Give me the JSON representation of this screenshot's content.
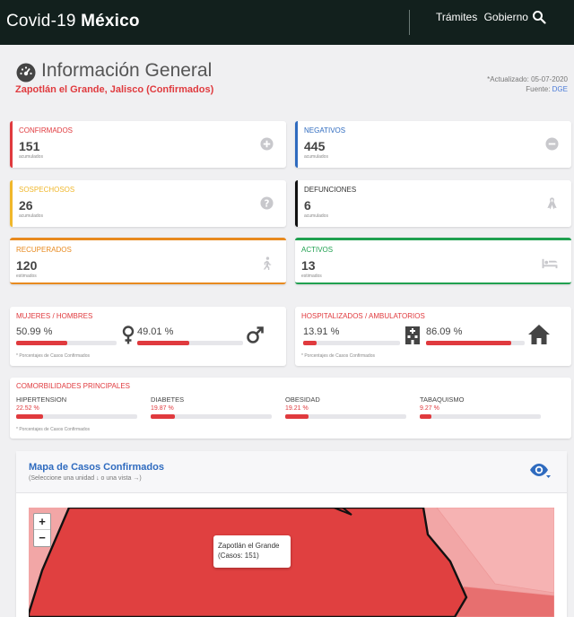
{
  "header": {
    "brand_prefix": "Covid-19",
    "brand_bold": "México",
    "nav_tramites": "Trámites",
    "nav_gobierno": "Gobierno"
  },
  "page": {
    "title": "Información General",
    "subtitle": "Zapotlán el Grande, Jalisco (Confirmados)",
    "updated": "*Actualizado: 05-07-2020",
    "source_prefix": "Fuente:",
    "source": "DGE"
  },
  "stats": {
    "confirmados": {
      "label": "CONFIRMADOS",
      "value": "151",
      "sub": "acumulados"
    },
    "negativos": {
      "label": "NEGATIVOS",
      "value": "445",
      "sub": "acumulados"
    },
    "sospechosos": {
      "label": "SOSPECHOSOS",
      "value": "26",
      "sub": "acumulados"
    },
    "defunciones": {
      "label": "DEFUNCIONES",
      "value": "6",
      "sub": "acumulados"
    },
    "recuperados": {
      "label": "RECUPERADOS",
      "value": "120",
      "sub": "estimados"
    },
    "activos": {
      "label": "ACTIVOS",
      "value": "13",
      "sub": "estimados"
    }
  },
  "gender": {
    "label": "MUJERES / HOMBRES",
    "women_pct": "50.99 %",
    "women_fraction": 0.5099,
    "men_pct": "49.01 %",
    "men_fraction": 0.4901,
    "note": "* Porcentajes de Casos Confirmados"
  },
  "hospital": {
    "label": "HOSPITALIZADOS / AMBULATORIOS",
    "hosp_pct": "13.91 %",
    "hosp_fraction": 0.1391,
    "amb_pct": "86.09 %",
    "amb_fraction": 0.8609,
    "note": "* Porcentajes  de Casos Confirmados"
  },
  "comorbidities": {
    "label": "COMORBILIDADES PRINCIPALES",
    "note": "* Porcentajes de Casos Confirmados",
    "items": [
      {
        "name": "HIPERTENSION",
        "pct": "22.52 %",
        "fraction": 0.2252
      },
      {
        "name": "DIABETES",
        "pct": "19.87 %",
        "fraction": 0.1987
      },
      {
        "name": "OBESIDAD",
        "pct": "19.21 %",
        "fraction": 0.1921
      },
      {
        "name": "TABAQUISMO",
        "pct": "9.27 %",
        "fraction": 0.0927
      }
    ]
  },
  "map": {
    "title": "Mapa de Casos Confirmados",
    "subtitle": "(Seleccione una unidad ↓ o una vista →)",
    "zoom_in": "+",
    "zoom_out": "−",
    "tooltip_name": "Zapotlán el Grande",
    "tooltip_cases": "(Casos: 151)"
  },
  "colors": {
    "accent_red": "#e03a3e",
    "blue": "#2f6bbf",
    "yellow": "#f0b72b",
    "orange": "#e88a1f",
    "green": "#20a050",
    "navbar": "#12201d"
  }
}
